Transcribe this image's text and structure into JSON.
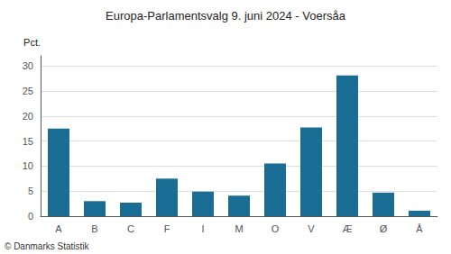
{
  "chart_data": {
    "type": "bar",
    "title": "Europa-Parlamentsvalg 9. juni 2024 - Voersåa",
    "ylabel": "Pct.",
    "annotations": [
      "© Danmarks Statistik"
    ],
    "categories": [
      "A",
      "B",
      "C",
      "F",
      "I",
      "M",
      "O",
      "V",
      "Æ",
      "Ø",
      "Å"
    ],
    "values": [
      17.5,
      3.0,
      2.7,
      7.5,
      4.9,
      4.1,
      10.5,
      17.7,
      28.1,
      4.7,
      1.1
    ],
    "color": "#1a6e96",
    "ylim": [
      0,
      32
    ],
    "yticks": [
      0,
      5,
      10,
      15,
      20,
      25,
      30
    ],
    "grid": true
  }
}
